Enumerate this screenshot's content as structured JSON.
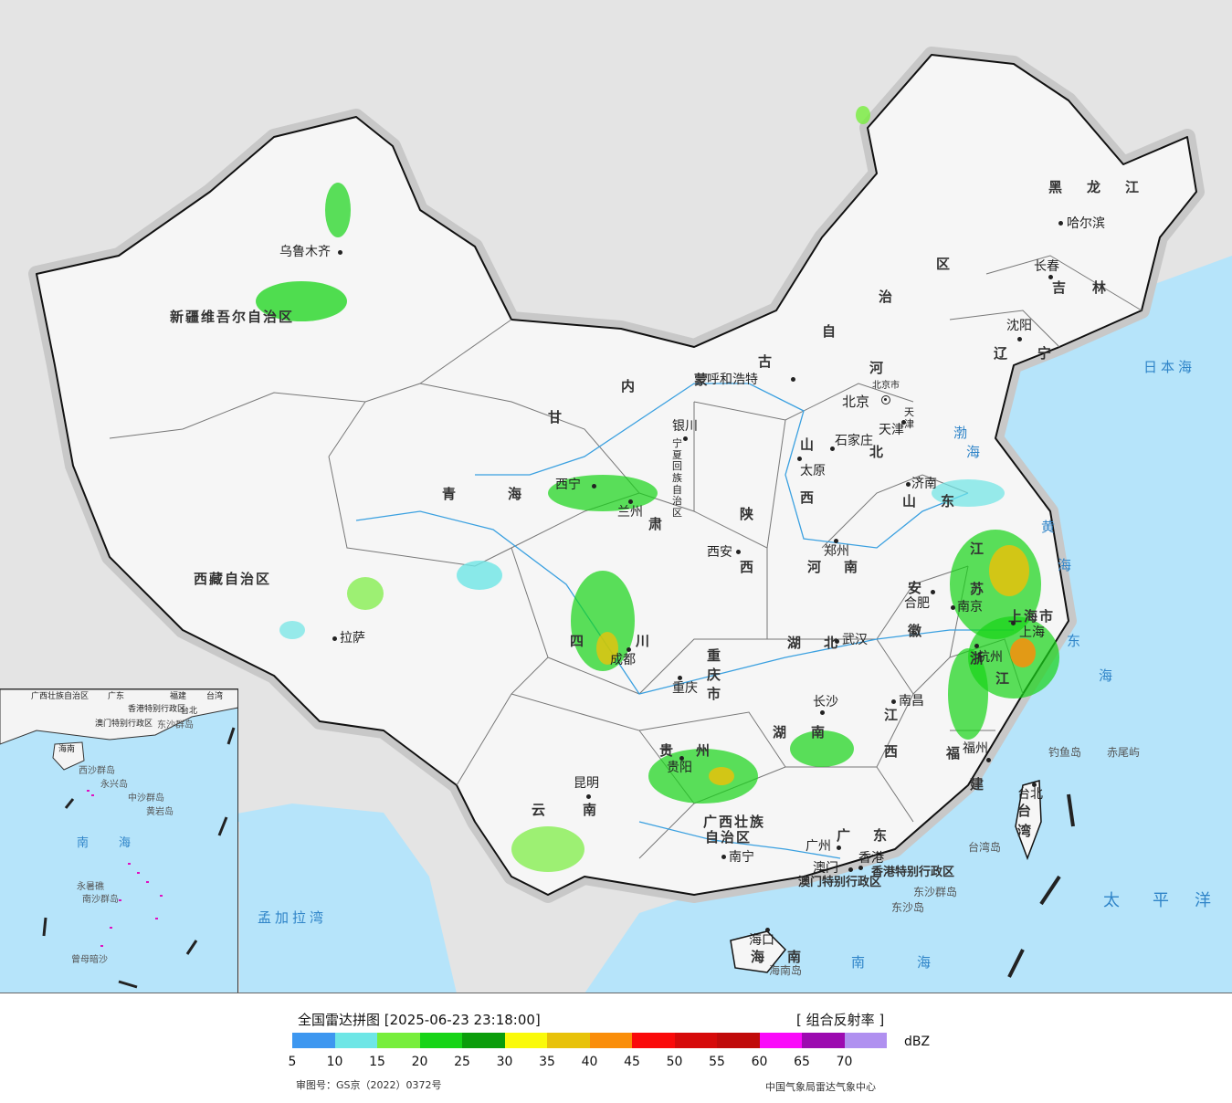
{
  "title": "全国雷达拼图 [2025-06-23 23:18:00]",
  "product": "[ 组合反射率 ]",
  "unit": "dBZ",
  "legend_ticks": [
    "5",
    "10",
    "15",
    "20",
    "25",
    "30",
    "35",
    "40",
    "45",
    "50",
    "55",
    "60",
    "65",
    "70"
  ],
  "legend_colors": [
    "#3d97f0",
    "#6ee6e6",
    "#77ee3c",
    "#17d417",
    "#0b9d0b",
    "#fafa0a",
    "#e8c20a",
    "#fa8e0a",
    "#fa0a0a",
    "#d60a0a",
    "#c00a0a",
    "#fa0afa",
    "#9c0ab0",
    "#b090f0"
  ],
  "review_number": "审图号：GS京（2022）0372号",
  "source": "中国气象局雷达气象中心",
  "provinces": [
    "新疆维吾尔自治区",
    "西藏自治区",
    "青",
    "海",
    "甘",
    "肃",
    "内",
    "蒙",
    "古",
    "自",
    "治",
    "区",
    "黑",
    "龙",
    "江",
    "吉",
    "林",
    "辽",
    "宁",
    "河",
    "北",
    "山",
    "西",
    "陕",
    "西",
    "河",
    "南",
    "山",
    "东",
    "江",
    "苏",
    "安",
    "徽",
    "湖",
    "北",
    "四",
    "川",
    "重庆市",
    "贵",
    "州",
    "云",
    "南",
    "湖",
    "南",
    "江",
    "西",
    "浙",
    "江",
    "福",
    "建",
    "广",
    "东",
    "广西壮族",
    "自治区",
    "海",
    "南",
    "台",
    "湾",
    "上海市",
    "宁夏回族自治区",
    "北京市",
    "天津"
  ],
  "cities": [
    "乌鲁木齐",
    "拉萨",
    "西宁",
    "兰州",
    "银川",
    "呼和浩特",
    "北京",
    "天津",
    "石家庄",
    "太原",
    "济南",
    "西安",
    "郑州",
    "合肥",
    "南京",
    "上海",
    "杭州",
    "成都",
    "重庆",
    "武汉",
    "长沙",
    "南昌",
    "福州",
    "贵阳",
    "昆明",
    "南宁",
    "广州",
    "澳门",
    "香港",
    "海口",
    "台北",
    "哈尔滨",
    "长春",
    "沈阳"
  ],
  "seas": [
    "日本海",
    "渤",
    "海",
    "黄",
    "海",
    "东",
    "海",
    "太",
    "平",
    "洋",
    "南",
    "海",
    "孟加拉湾"
  ],
  "islands": [
    "钓鱼岛",
    "赤尾屿",
    "台湾岛",
    "东沙群岛",
    "东沙岛",
    "海南岛"
  ],
  "sars": [
    "香港特别行政区",
    "澳门特别行政区"
  ],
  "inset": {
    "sea": [
      "南",
      "海"
    ],
    "islands": [
      "东沙群岛",
      "西沙群岛",
      "永兴岛",
      "中沙群岛",
      "黄岩岛",
      "南沙群岛",
      "永暑礁",
      "曾母暗沙"
    ],
    "labels": [
      "广西壮族自治区",
      "广东",
      "福建",
      "台湾",
      "香港特别行政区",
      "澳门特别行政区",
      "海南",
      "台北"
    ]
  }
}
